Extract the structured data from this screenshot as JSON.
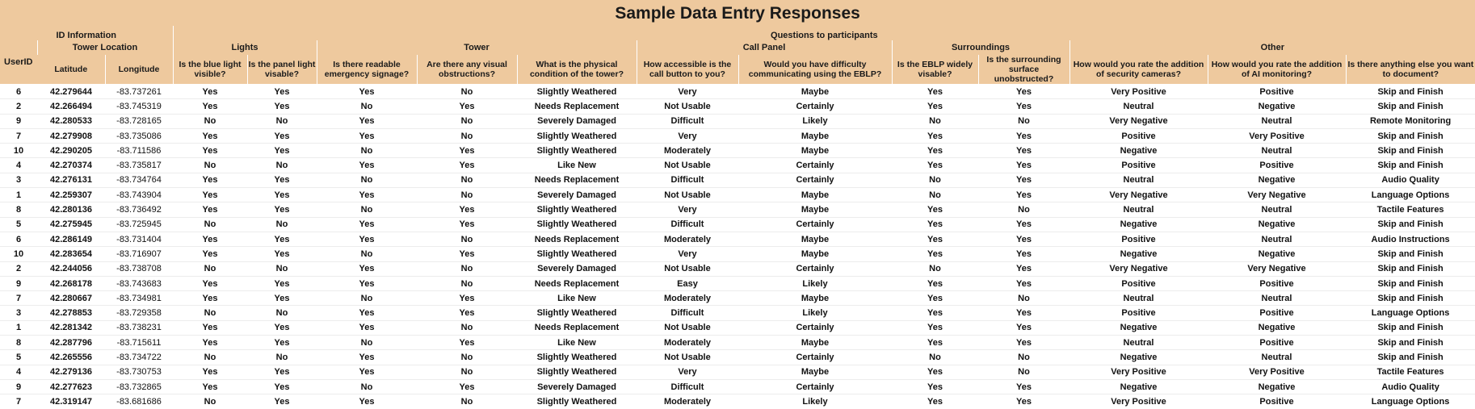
{
  "title": "Sample Data Entry Responses",
  "header": {
    "id_information": "ID Information",
    "questions": "Questions to participants",
    "tower_location": "Tower Location",
    "userid": "UserID",
    "latitude": "Latitude",
    "longitude": "Longitude",
    "groups": {
      "lights": "Lights",
      "tower": "Tower",
      "call_panel": "Call Panel",
      "surroundings": "Surroundings",
      "other": "Other"
    },
    "questions_list": [
      "Is the blue light visible?",
      "Is the panel light visable?",
      "Is there readable emergency signage?",
      "Are there any visual obstructions?",
      "What is the physical condition of the tower?",
      "How accessible is the call button to you?",
      "Would you have difficulty communicating using the EBLP?",
      "Is the EBLP widely visable?",
      "Is the surrounding surface unobstructed?",
      "How would you rate the addition of security cameras?",
      "How would you rate the addition of AI monitoring?",
      "Is there anything else you want to document?"
    ]
  },
  "rows": [
    [
      "6",
      "42.279644",
      "-83.737261",
      "Yes",
      "Yes",
      "Yes",
      "No",
      "Slightly Weathered",
      "Very",
      "Maybe",
      "Yes",
      "Yes",
      "Very Positive",
      "Positive",
      "Skip and Finish"
    ],
    [
      "2",
      "42.266494",
      "-83.745319",
      "Yes",
      "Yes",
      "No",
      "Yes",
      "Needs Replacement",
      "Not Usable",
      "Certainly",
      "Yes",
      "Yes",
      "Neutral",
      "Negative",
      "Skip and Finish"
    ],
    [
      "9",
      "42.280533",
      "-83.728165",
      "No",
      "No",
      "Yes",
      "No",
      "Severely Damaged",
      "Difficult",
      "Likely",
      "No",
      "No",
      "Very Negative",
      "Neutral",
      "Remote Monitoring"
    ],
    [
      "7",
      "42.279908",
      "-83.735086",
      "Yes",
      "Yes",
      "Yes",
      "No",
      "Slightly Weathered",
      "Very",
      "Maybe",
      "Yes",
      "Yes",
      "Positive",
      "Very Positive",
      "Skip and Finish"
    ],
    [
      "10",
      "42.290205",
      "-83.711586",
      "Yes",
      "Yes",
      "No",
      "Yes",
      "Slightly Weathered",
      "Moderately",
      "Maybe",
      "Yes",
      "Yes",
      "Negative",
      "Neutral",
      "Skip and Finish"
    ],
    [
      "4",
      "42.270374",
      "-83.735817",
      "No",
      "No",
      "Yes",
      "Yes",
      "Like New",
      "Not Usable",
      "Certainly",
      "Yes",
      "Yes",
      "Positive",
      "Positive",
      "Skip and Finish"
    ],
    [
      "3",
      "42.276131",
      "-83.734764",
      "Yes",
      "Yes",
      "No",
      "No",
      "Needs Replacement",
      "Difficult",
      "Certainly",
      "No",
      "Yes",
      "Neutral",
      "Negative",
      "Audio Quality"
    ],
    [
      "1",
      "42.259307",
      "-83.743904",
      "Yes",
      "Yes",
      "Yes",
      "No",
      "Severely Damaged",
      "Not Usable",
      "Maybe",
      "No",
      "Yes",
      "Very Negative",
      "Very Negative",
      "Language Options"
    ],
    [
      "8",
      "42.280136",
      "-83.736492",
      "Yes",
      "Yes",
      "No",
      "Yes",
      "Slightly Weathered",
      "Very",
      "Maybe",
      "Yes",
      "No",
      "Neutral",
      "Neutral",
      "Tactile Features"
    ],
    [
      "5",
      "42.275945",
      "-83.725945",
      "No",
      "No",
      "Yes",
      "Yes",
      "Slightly Weathered",
      "Difficult",
      "Certainly",
      "Yes",
      "Yes",
      "Negative",
      "Negative",
      "Skip and Finish"
    ],
    [
      "6",
      "42.286149",
      "-83.731404",
      "Yes",
      "Yes",
      "Yes",
      "No",
      "Needs Replacement",
      "Moderately",
      "Maybe",
      "Yes",
      "Yes",
      "Positive",
      "Neutral",
      "Audio Instructions"
    ],
    [
      "10",
      "42.283654",
      "-83.716907",
      "Yes",
      "Yes",
      "No",
      "Yes",
      "Slightly Weathered",
      "Very",
      "Maybe",
      "Yes",
      "Yes",
      "Negative",
      "Negative",
      "Skip and Finish"
    ],
    [
      "2",
      "42.244056",
      "-83.738708",
      "No",
      "No",
      "Yes",
      "No",
      "Severely Damaged",
      "Not Usable",
      "Certainly",
      "No",
      "Yes",
      "Very Negative",
      "Very Negative",
      "Skip and Finish"
    ],
    [
      "9",
      "42.268178",
      "-83.743683",
      "Yes",
      "Yes",
      "Yes",
      "No",
      "Needs Replacement",
      "Easy",
      "Likely",
      "Yes",
      "Yes",
      "Positive",
      "Positive",
      "Skip and Finish"
    ],
    [
      "7",
      "42.280667",
      "-83.734981",
      "Yes",
      "Yes",
      "No",
      "Yes",
      "Like New",
      "Moderately",
      "Maybe",
      "Yes",
      "No",
      "Neutral",
      "Neutral",
      "Skip and Finish"
    ],
    [
      "3",
      "42.278853",
      "-83.729358",
      "No",
      "No",
      "Yes",
      "Yes",
      "Slightly Weathered",
      "Difficult",
      "Likely",
      "Yes",
      "Yes",
      "Positive",
      "Positive",
      "Language Options"
    ],
    [
      "1",
      "42.281342",
      "-83.738231",
      "Yes",
      "Yes",
      "Yes",
      "No",
      "Needs Replacement",
      "Not Usable",
      "Certainly",
      "Yes",
      "Yes",
      "Negative",
      "Negative",
      "Skip and Finish"
    ],
    [
      "8",
      "42.287796",
      "-83.715611",
      "Yes",
      "Yes",
      "No",
      "Yes",
      "Like New",
      "Moderately",
      "Maybe",
      "Yes",
      "Yes",
      "Neutral",
      "Positive",
      "Skip and Finish"
    ],
    [
      "5",
      "42.265556",
      "-83.734722",
      "No",
      "No",
      "Yes",
      "No",
      "Slightly Weathered",
      "Not Usable",
      "Certainly",
      "No",
      "No",
      "Negative",
      "Neutral",
      "Skip and Finish"
    ],
    [
      "4",
      "42.279136",
      "-83.730753",
      "Yes",
      "Yes",
      "Yes",
      "No",
      "Slightly Weathered",
      "Very",
      "Maybe",
      "Yes",
      "No",
      "Very Positive",
      "Very Positive",
      "Tactile Features"
    ],
    [
      "9",
      "42.277623",
      "-83.732865",
      "Yes",
      "Yes",
      "No",
      "Yes",
      "Severely Damaged",
      "Difficult",
      "Certainly",
      "Yes",
      "Yes",
      "Negative",
      "Negative",
      "Audio Quality"
    ],
    [
      "7",
      "42.319147",
      "-83.681686",
      "No",
      "Yes",
      "Yes",
      "No",
      "Slightly Weathered",
      "Moderately",
      "Likely",
      "Yes",
      "Yes",
      "Very Positive",
      "Positive",
      "Language Options"
    ]
  ]
}
